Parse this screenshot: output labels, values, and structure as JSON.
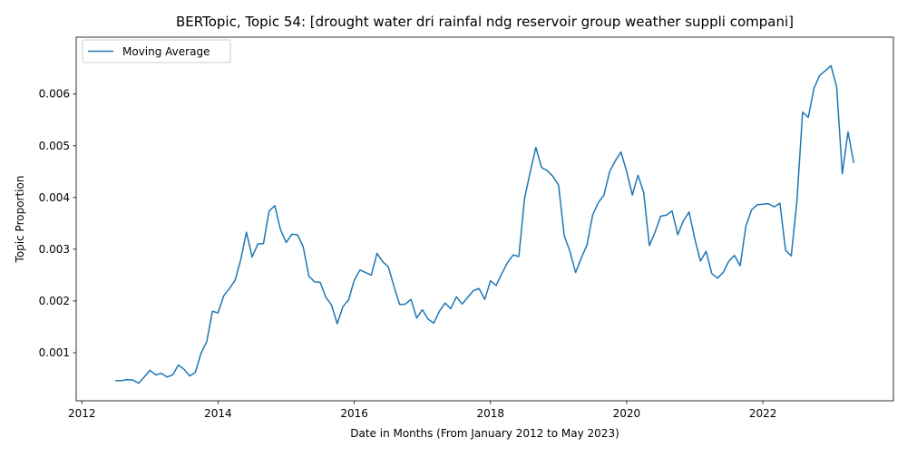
{
  "chart_data": {
    "type": "line",
    "title": "BERTopic, Topic 54: [drought water dri rainfal ndg reservoir group weather suppli compani]",
    "xlabel": "Date in Months (From January 2012 to May 2023)",
    "ylabel": "Topic Proportion",
    "xlim": [
      "2011-12",
      "2023-12"
    ],
    "ylim": [
      7e-05,
      0.0071
    ],
    "x_ticks": [
      "2012",
      "2014",
      "2016",
      "2018",
      "2020",
      "2022"
    ],
    "y_ticks": [
      "0.001",
      "0.002",
      "0.003",
      "0.004",
      "0.005",
      "0.006"
    ],
    "grid": false,
    "legend": "upper-left",
    "color": "#1f77b4",
    "series": [
      {
        "name": "Moving Average",
        "x": [
          "2012-07",
          "2012-08",
          "2012-09",
          "2012-10",
          "2012-11",
          "2012-12",
          "2013-01",
          "2013-02",
          "2013-03",
          "2013-04",
          "2013-05",
          "2013-06",
          "2013-07",
          "2013-08",
          "2013-09",
          "2013-10",
          "2013-11",
          "2013-12",
          "2014-01",
          "2014-02",
          "2014-03",
          "2014-04",
          "2014-05",
          "2014-06",
          "2014-07",
          "2014-08",
          "2014-09",
          "2014-10",
          "2014-11",
          "2014-12",
          "2015-01",
          "2015-02",
          "2015-03",
          "2015-04",
          "2015-05",
          "2015-06",
          "2015-07",
          "2015-08",
          "2015-09",
          "2015-10",
          "2015-11",
          "2015-12",
          "2016-01",
          "2016-02",
          "2016-03",
          "2016-04",
          "2016-05",
          "2016-06",
          "2016-07",
          "2016-08",
          "2016-09",
          "2016-10",
          "2016-11",
          "2016-12",
          "2017-01",
          "2017-02",
          "2017-03",
          "2017-04",
          "2017-05",
          "2017-06",
          "2017-07",
          "2017-08",
          "2017-09",
          "2017-10",
          "2017-11",
          "2017-12",
          "2018-01",
          "2018-02",
          "2018-03",
          "2018-04",
          "2018-05",
          "2018-06",
          "2018-07",
          "2018-08",
          "2018-09",
          "2018-10",
          "2018-11",
          "2018-12",
          "2019-01",
          "2019-02",
          "2019-03",
          "2019-04",
          "2019-05",
          "2019-06",
          "2019-07",
          "2019-08",
          "2019-09",
          "2019-10",
          "2019-11",
          "2019-12",
          "2020-01",
          "2020-02",
          "2020-03",
          "2020-04",
          "2020-05",
          "2020-06",
          "2020-07",
          "2020-08",
          "2020-09",
          "2020-10",
          "2020-11",
          "2020-12",
          "2021-01",
          "2021-02",
          "2021-03",
          "2021-04",
          "2021-05",
          "2021-06",
          "2021-07",
          "2021-08",
          "2021-09",
          "2021-10",
          "2021-11",
          "2021-12",
          "2022-01",
          "2022-02",
          "2022-03",
          "2022-04",
          "2022-05",
          "2022-06",
          "2022-07",
          "2022-08",
          "2022-09",
          "2022-10",
          "2022-11",
          "2022-12",
          "2023-01",
          "2023-02",
          "2023-03",
          "2023-04",
          "2023-05"
        ],
        "values": [
          0.00046,
          0.00046,
          0.00048,
          0.00047,
          0.00041,
          0.00053,
          0.00066,
          0.00057,
          0.0006,
          0.00053,
          0.00057,
          0.00076,
          0.00068,
          0.00055,
          0.00062,
          0.00099,
          0.00121,
          0.0018,
          0.00177,
          0.0021,
          0.00224,
          0.0024,
          0.0028,
          0.00333,
          0.00285,
          0.0031,
          0.00311,
          0.00374,
          0.00384,
          0.00338,
          0.00313,
          0.00329,
          0.00328,
          0.00305,
          0.00248,
          0.00237,
          0.00236,
          0.00207,
          0.00192,
          0.00156,
          0.00189,
          0.00202,
          0.0024,
          0.0026,
          0.00255,
          0.0025,
          0.00292,
          0.00276,
          0.00266,
          0.00228,
          0.00193,
          0.00194,
          0.00203,
          0.00167,
          0.00183,
          0.00165,
          0.00157,
          0.0018,
          0.00196,
          0.00185,
          0.00208,
          0.00194,
          0.00207,
          0.0022,
          0.00224,
          0.00203,
          0.00239,
          0.0023,
          0.00253,
          0.00274,
          0.00289,
          0.00286,
          0.00398,
          0.00449,
          0.00497,
          0.00458,
          0.00452,
          0.00441,
          0.00424,
          0.00326,
          0.00296,
          0.00255,
          0.00283,
          0.00308,
          0.00366,
          0.0039,
          0.00405,
          0.0045,
          0.00471,
          0.00488,
          0.0045,
          0.00405,
          0.00443,
          0.0041,
          0.00307,
          0.00333,
          0.00364,
          0.00366,
          0.00374,
          0.00328,
          0.00355,
          0.00372,
          0.0032,
          0.00277,
          0.00296,
          0.00253,
          0.00244,
          0.00255,
          0.00277,
          0.00288,
          0.00268,
          0.00344,
          0.00376,
          0.00386,
          0.00387,
          0.00388,
          0.00382,
          0.00389,
          0.00298,
          0.00287,
          0.00393,
          0.00565,
          0.00555,
          0.00611,
          0.00636,
          0.00645,
          0.00655,
          0.00614,
          0.00446,
          0.00527,
          0.00468
        ]
      }
    ]
  }
}
